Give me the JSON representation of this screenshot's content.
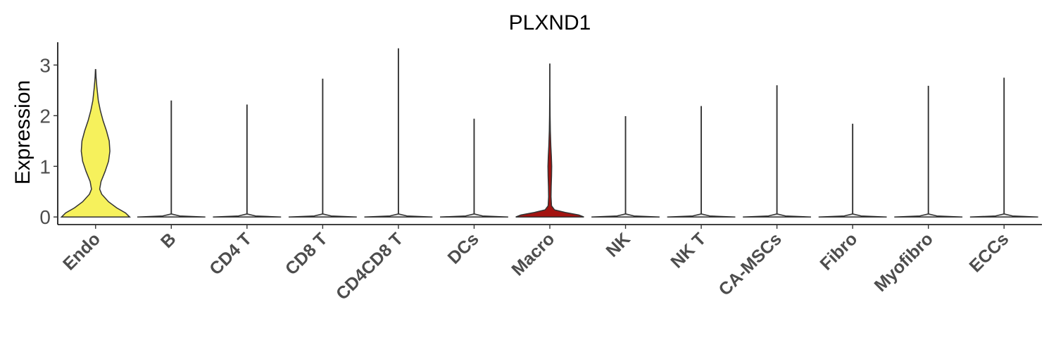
{
  "chart_data": {
    "type": "violin",
    "title": "PLXND1",
    "xlabel": "",
    "ylabel": "Expression",
    "ylim": [
      -0.15,
      3.45
    ],
    "yticks": [
      0,
      1,
      2,
      3
    ],
    "grid": false,
    "legend": "none",
    "categories": [
      "Endo",
      "B",
      "CD4 T",
      "CD8 T",
      "CD4CD8 T",
      "DCs",
      "Macro",
      "NK",
      "NK T",
      "CA-MSCs",
      "Fibro",
      "Myofibro",
      "ECCs"
    ],
    "colors": {
      "Endo": "#F6F15C",
      "Macro": "#A31310",
      "default": "#e6e6e6"
    },
    "violins": [
      {
        "category": "Endo",
        "max": 2.91,
        "density": [
          [
            0,
            1.0
          ],
          [
            0.08,
            0.88
          ],
          [
            0.18,
            0.62
          ],
          [
            0.3,
            0.38
          ],
          [
            0.45,
            0.18
          ],
          [
            0.55,
            0.12
          ],
          [
            0.7,
            0.16
          ],
          [
            0.9,
            0.28
          ],
          [
            1.1,
            0.38
          ],
          [
            1.3,
            0.42
          ],
          [
            1.5,
            0.4
          ],
          [
            1.7,
            0.32
          ],
          [
            1.9,
            0.22
          ],
          [
            2.1,
            0.14
          ],
          [
            2.3,
            0.08
          ],
          [
            2.55,
            0.04
          ],
          [
            2.75,
            0.015
          ],
          [
            2.91,
            0.005
          ]
        ]
      },
      {
        "category": "B",
        "max": 2.29,
        "density": [
          [
            0,
            1.0
          ],
          [
            0.02,
            0.25
          ],
          [
            0.06,
            0.004
          ],
          [
            2.29,
            0.004
          ]
        ]
      },
      {
        "category": "CD4 T",
        "max": 2.21,
        "density": [
          [
            0,
            1.0
          ],
          [
            0.02,
            0.25
          ],
          [
            0.06,
            0.004
          ],
          [
            2.21,
            0.004
          ]
        ]
      },
      {
        "category": "CD8 T",
        "max": 2.72,
        "density": [
          [
            0,
            1.0
          ],
          [
            0.02,
            0.25
          ],
          [
            0.06,
            0.004
          ],
          [
            2.72,
            0.004
          ]
        ]
      },
      {
        "category": "CD4CD8 T",
        "max": 3.32,
        "density": [
          [
            0,
            1.0
          ],
          [
            0.02,
            0.25
          ],
          [
            0.06,
            0.004
          ],
          [
            3.32,
            0.004
          ]
        ]
      },
      {
        "category": "DCs",
        "max": 1.93,
        "density": [
          [
            0,
            1.0
          ],
          [
            0.02,
            0.25
          ],
          [
            0.06,
            0.004
          ],
          [
            1.93,
            0.004
          ]
        ]
      },
      {
        "category": "Macro",
        "max": 3.02,
        "density": [
          [
            0,
            1.0
          ],
          [
            0.04,
            0.85
          ],
          [
            0.09,
            0.45
          ],
          [
            0.14,
            0.14
          ],
          [
            0.22,
            0.05
          ],
          [
            0.4,
            0.035
          ],
          [
            0.6,
            0.04
          ],
          [
            0.8,
            0.05
          ],
          [
            1.0,
            0.055
          ],
          [
            1.2,
            0.045
          ],
          [
            1.4,
            0.03
          ],
          [
            1.7,
            0.015
          ],
          [
            2.0,
            0.008
          ],
          [
            2.4,
            0.004
          ],
          [
            3.02,
            0.003
          ]
        ]
      },
      {
        "category": "NK",
        "max": 1.98,
        "density": [
          [
            0,
            1.0
          ],
          [
            0.02,
            0.25
          ],
          [
            0.06,
            0.004
          ],
          [
            1.98,
            0.004
          ]
        ]
      },
      {
        "category": "NK T",
        "max": 2.18,
        "density": [
          [
            0,
            1.0
          ],
          [
            0.02,
            0.25
          ],
          [
            0.06,
            0.004
          ],
          [
            2.18,
            0.004
          ]
        ]
      },
      {
        "category": "CA-MSCs",
        "max": 2.59,
        "density": [
          [
            0,
            1.0
          ],
          [
            0.02,
            0.25
          ],
          [
            0.06,
            0.004
          ],
          [
            2.59,
            0.004
          ]
        ]
      },
      {
        "category": "Fibro",
        "max": 1.83,
        "density": [
          [
            0,
            1.0
          ],
          [
            0.02,
            0.25
          ],
          [
            0.06,
            0.004
          ],
          [
            1.83,
            0.004
          ]
        ]
      },
      {
        "category": "Myofibro",
        "max": 2.58,
        "density": [
          [
            0,
            1.0
          ],
          [
            0.02,
            0.25
          ],
          [
            0.06,
            0.004
          ],
          [
            2.58,
            0.004
          ]
        ]
      },
      {
        "category": "ECCs",
        "max": 2.74,
        "density": [
          [
            0,
            1.0
          ],
          [
            0.02,
            0.25
          ],
          [
            0.06,
            0.004
          ],
          [
            2.74,
            0.004
          ]
        ]
      }
    ]
  }
}
